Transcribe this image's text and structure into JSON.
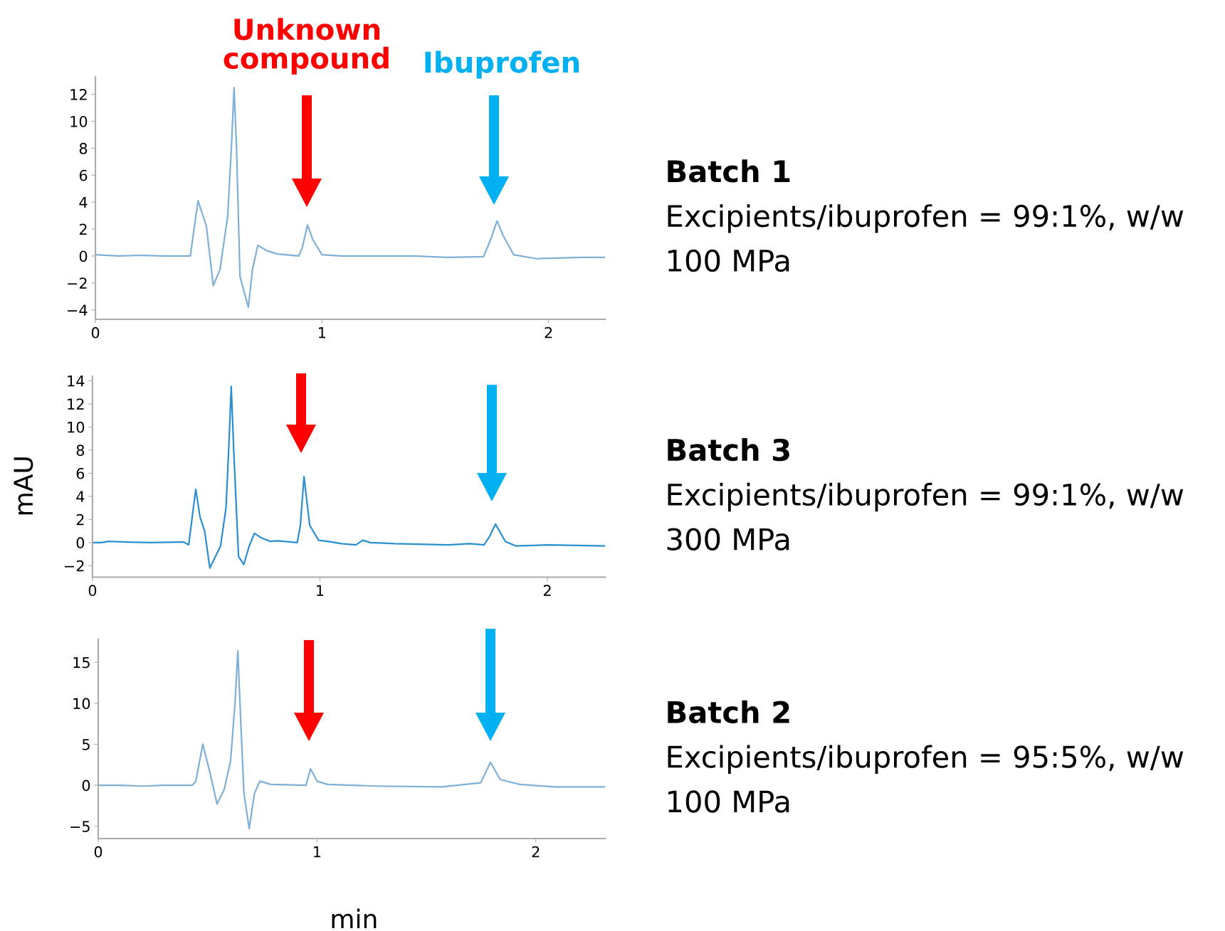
{
  "chart_data": [
    {
      "type": "line",
      "xlim": [
        0,
        2.25
      ],
      "ylim": [
        -4.7,
        13.3
      ],
      "xticks": [
        0,
        1,
        2
      ],
      "yticks": [
        -4,
        -2,
        0,
        2,
        4,
        6,
        8,
        10,
        12
      ],
      "series": [
        {
          "color": "#7fb0d8",
          "x": [
            0,
            0.1,
            0.2,
            0.3,
            0.419,
            0.435,
            0.453,
            0.49,
            0.52,
            0.55,
            0.584,
            0.6,
            0.612,
            0.623,
            0.638,
            0.675,
            0.693,
            0.717,
            0.756,
            0.803,
            0.897,
            0.913,
            0.936,
            0.96,
            1.0,
            1.085,
            1.2,
            1.4,
            1.556,
            1.713,
            1.744,
            1.773,
            1.8,
            1.846,
            1.948,
            2.027,
            2.15,
            2.246
          ],
          "values": [
            0.1,
            0,
            0.05,
            0,
            0,
            2.0,
            4.1,
            2.2,
            -2.2,
            -1.0,
            3,
            8,
            12.5,
            8,
            -1.5,
            -3.8,
            -1,
            0.8,
            0.4,
            0.15,
            0,
            0.6,
            2.3,
            1.2,
            0.1,
            0,
            0,
            0,
            -0.1,
            -0.05,
            1.2,
            2.6,
            1.5,
            0.1,
            -0.2,
            -0.15,
            -0.1,
            -0.1
          ]
        }
      ],
      "annotations": [
        "Unknown\ncompound",
        "Ibuprofen",
        "Batch 1",
        "Excipients/ibuprofen = 99:1%, w/w",
        "100 MPa"
      ]
    },
    {
      "type": "line",
      "ylabel": "mAU",
      "xlim": [
        0,
        2.254
      ],
      "ylim": [
        -3,
        14.4
      ],
      "xticks": [
        0,
        1,
        2
      ],
      "yticks": [
        -2,
        0,
        2,
        4,
        6,
        8,
        10,
        12,
        14
      ],
      "series": [
        {
          "color": "#2a8fd0",
          "x": [
            0,
            0.04,
            0.07,
            0.15,
            0.25,
            0.4,
            0.423,
            0.454,
            0.473,
            0.493,
            0.516,
            0.563,
            0.587,
            0.601,
            0.61,
            0.621,
            0.642,
            0.665,
            0.689,
            0.712,
            0.743,
            0.782,
            0.814,
            0.9,
            0.914,
            0.93,
            0.955,
            0.994,
            1.033,
            1.095,
            1.158,
            1.189,
            1.221,
            1.33,
            1.565,
            1.659,
            1.722,
            1.745,
            1.772,
            1.815,
            1.862,
            2.003,
            2.254
          ],
          "values": [
            0,
            0,
            0.1,
            0.05,
            0,
            0.05,
            -0.2,
            4.6,
            2.2,
            1.0,
            -2.2,
            -0.3,
            3,
            9,
            13.5,
            8,
            -1.2,
            -1.9,
            -0.3,
            0.8,
            0.4,
            0.1,
            0.15,
            0,
            1.5,
            5.7,
            1.5,
            0.2,
            0.1,
            -0.1,
            -0.2,
            0.2,
            0,
            -0.1,
            -0.2,
            -0.1,
            -0.2,
            0.5,
            1.6,
            0.1,
            -0.3,
            -0.2,
            -0.3
          ]
        }
      ],
      "annotations": [
        "Batch 3",
        "Excipients/ibuprofen = 99:1%, w/w",
        "300 MPa"
      ]
    },
    {
      "type": "line",
      "xlabel": "min",
      "xlim": [
        0,
        2.317
      ],
      "ylim": [
        -6.5,
        17.8
      ],
      "xticks": [
        0,
        1,
        2
      ],
      "yticks": [
        -5,
        0,
        5,
        10,
        15
      ],
      "series": [
        {
          "color": "#7fb0d8",
          "x": [
            0,
            0.1,
            0.2,
            0.3,
            0.43,
            0.446,
            0.478,
            0.511,
            0.543,
            0.576,
            0.605,
            0.625,
            0.638,
            0.651,
            0.666,
            0.69,
            0.714,
            0.739,
            0.788,
            0.95,
            0.97,
            1.0,
            1.048,
            1.276,
            1.569,
            1.748,
            1.793,
            1.837,
            1.927,
            2.089,
            2.317
          ],
          "values": [
            0,
            0,
            -0.1,
            0,
            0,
            0.5,
            5.0,
            1.5,
            -2.3,
            -0.5,
            3,
            10,
            16.4,
            8,
            -1,
            -5.3,
            -1,
            0.5,
            0.1,
            0,
            2.0,
            0.5,
            0.1,
            -0.1,
            -0.2,
            0.3,
            2.8,
            0.7,
            0.1,
            -0.2,
            -0.2
          ]
        }
      ],
      "annotations": [
        "Batch 2",
        "Excipients/ibuprofen = 95:5%, w/w",
        "100 MPa"
      ]
    }
  ]
}
